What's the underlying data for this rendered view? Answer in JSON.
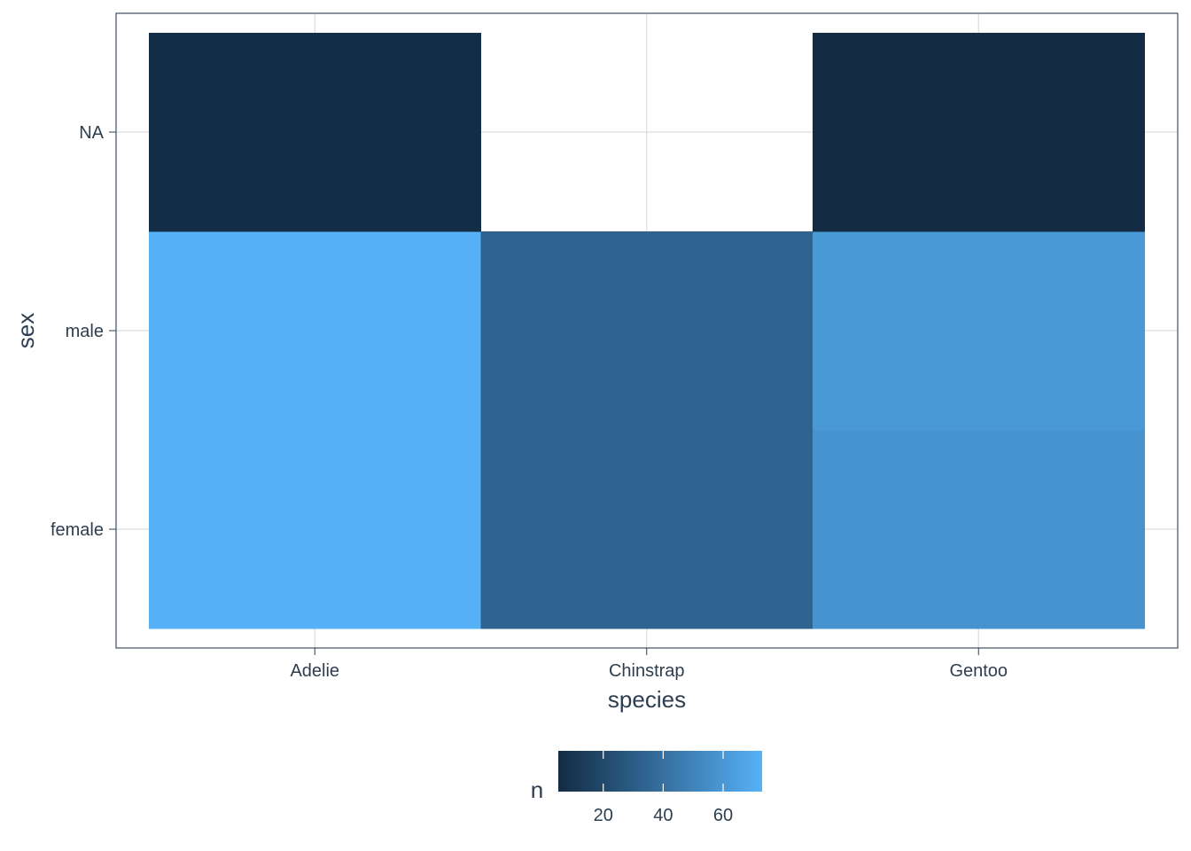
{
  "chart_data": {
    "type": "heatmap",
    "x": [
      "Adelie",
      "Chinstrap",
      "Gentoo"
    ],
    "y": [
      "female",
      "male",
      "NA"
    ],
    "xlabel": "species",
    "ylabel": "sex",
    "cells": [
      {
        "x": "Adelie",
        "y": "female",
        "n": 73
      },
      {
        "x": "Adelie",
        "y": "male",
        "n": 73
      },
      {
        "x": "Adelie",
        "y": "NA",
        "n": 6
      },
      {
        "x": "Chinstrap",
        "y": "female",
        "n": 34
      },
      {
        "x": "Chinstrap",
        "y": "male",
        "n": 34
      },
      {
        "x": "Gentoo",
        "y": "female",
        "n": 58
      },
      {
        "x": "Gentoo",
        "y": "male",
        "n": 61
      },
      {
        "x": "Gentoo",
        "y": "NA",
        "n": 5
      }
    ],
    "legend": {
      "title": "n",
      "position": "bottom",
      "range": [
        5,
        73
      ],
      "ticks": [
        20,
        40,
        60
      ],
      "low_color": "#132B43",
      "high_color": "#56B1F7"
    },
    "grid": true
  }
}
